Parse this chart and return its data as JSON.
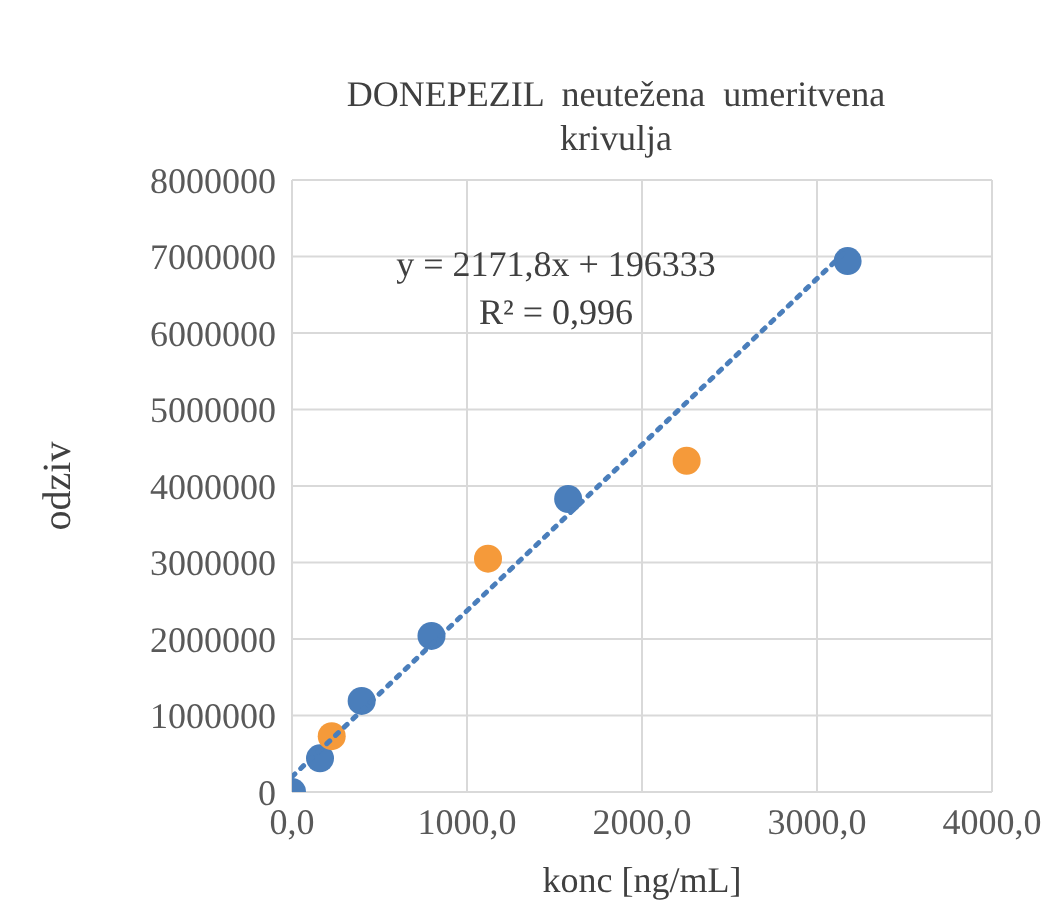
{
  "chart_data": {
    "type": "scatter",
    "title": "DONEPEZIL  neutežena  umeritvena krivulja",
    "xlabel": "konc [ng/mL]",
    "ylabel": "odziv",
    "xlim": [
      0,
      4000
    ],
    "xticks": [
      {
        "value": 0,
        "label": "0,0"
      },
      {
        "value": 1000,
        "label": "1000,0"
      },
      {
        "value": 2000,
        "label": "2000,0"
      },
      {
        "value": 3000,
        "label": "3000,0"
      },
      {
        "value": 4000,
        "label": "4000,0"
      }
    ],
    "ylim": [
      0,
      8000000
    ],
    "yticks": [
      0,
      1000000,
      2000000,
      3000000,
      4000000,
      5000000,
      6000000,
      7000000,
      8000000
    ],
    "grid": true,
    "marker": "circle",
    "annotations": [
      "y = 2171,8x + 196333",
      "R² = 0,996"
    ],
    "series": [
      {
        "color": "#4a7ebb",
        "x": [
          0,
          160,
          398,
          797,
          1578,
          3175
        ],
        "values": [
          0,
          440000,
          1190000,
          2040000,
          3830000,
          6940000
        ]
      },
      {
        "color": "#f59a3a",
        "x": [
          227,
          1120,
          2255
        ],
        "values": [
          730000,
          3050000,
          4330000
        ]
      },
      {
        "type": "line",
        "color": "#4a7ebb",
        "line_style": "dotted",
        "marker": "none",
        "x": [
          0,
          3175
        ],
        "values": [
          200000,
          7090000
        ]
      }
    ]
  }
}
